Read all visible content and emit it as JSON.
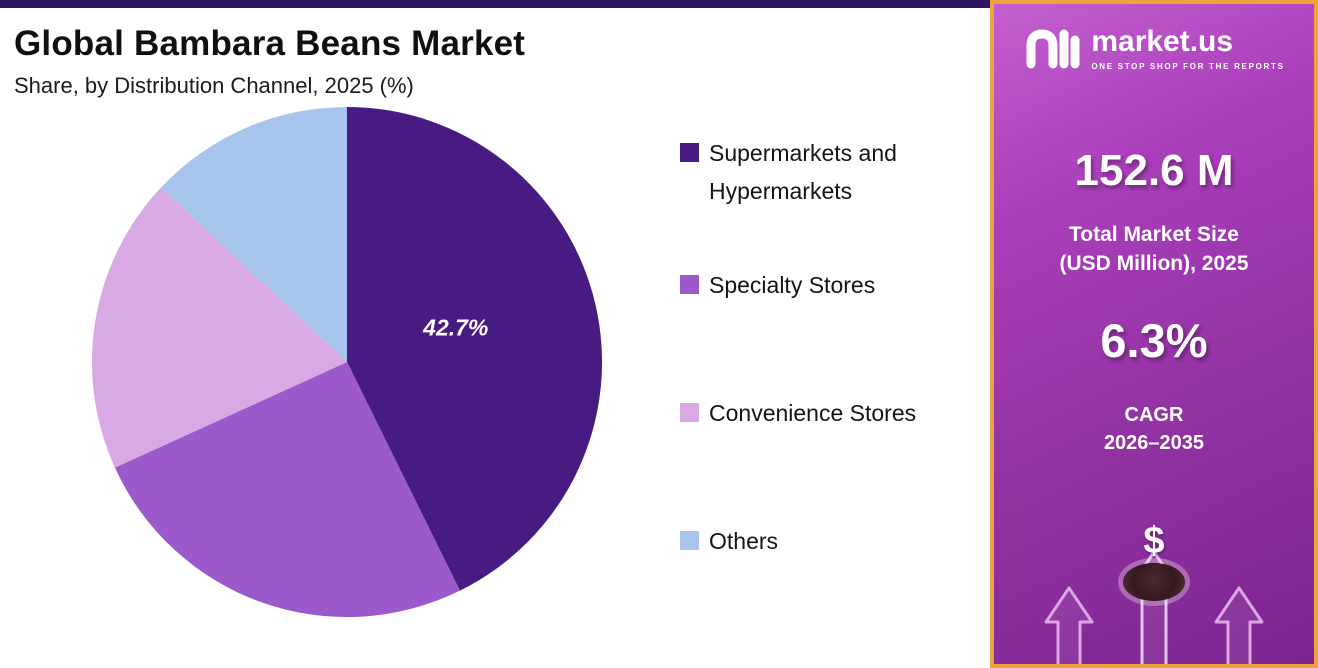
{
  "chart": {
    "title": "Global Bambara Beans Market",
    "subtitle": "Share, by Distribution Channel, 2025 (%)"
  },
  "chart_data": {
    "type": "pie",
    "title": "Global Bambara Beans Market",
    "subtitle": "Share, by Distribution Channel, 2025 (%)",
    "unit": "%",
    "labels": [
      "Supermarkets and Hypermarkets",
      "Specialty Stores",
      "Convenience Stores",
      "Others"
    ],
    "values": [
      42.7,
      25.5,
      18.8,
      13.0
    ],
    "colors": [
      "#471b81",
      "#9c59cb",
      "#d9a9e6",
      "#a7c4ec"
    ],
    "data_label": "42.7%",
    "start_angle_deg": 0,
    "direction": "clockwise",
    "legend_position": "right",
    "note": "Only the 42.7% slice is labeled in the figure; other slice values are estimated from arc angles."
  },
  "sidebar": {
    "brand": {
      "name": "market.us",
      "tagline": "ONE STOP SHOP FOR THE REPORTS"
    },
    "market_size_value": "152.6 M",
    "market_size_label_line1": "Total Market Size",
    "market_size_label_line2": "(USD Million), 2025",
    "cagr_value": "6.3%",
    "cagr_label": "CAGR",
    "cagr_period": "2026–2035",
    "dollar_symbol": "$",
    "accent_border": "#f0a23c",
    "bg_from": "#c35fd0",
    "bg_to": "#7c2492"
  }
}
